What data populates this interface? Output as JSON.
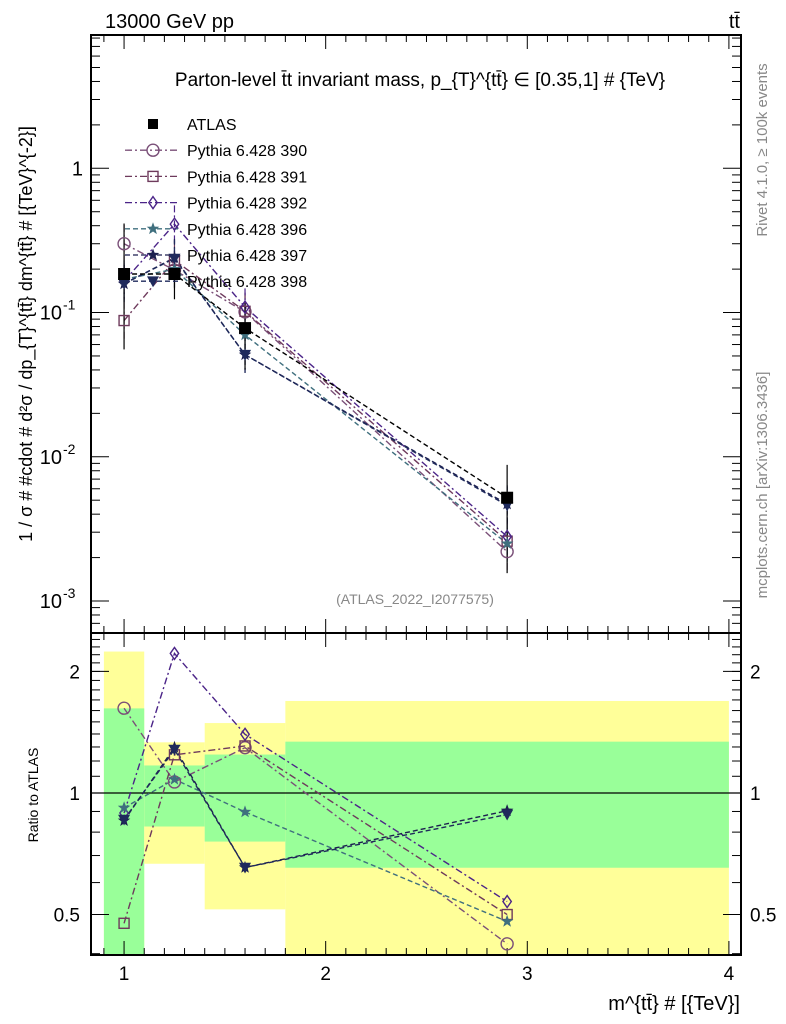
{
  "header": {
    "energy": "13000 GeV pp",
    "process": "tt̄",
    "rivet": "Rivet 4.1.0, ≥ 100k events",
    "mcplots": "mcplots.cern.ch [arXiv:1306.3436]",
    "analysis": "(ATLAS_2022_I2077575)"
  },
  "chart_data": {
    "type": "line",
    "title": "Parton-level t̄t invariant mass, p_{T}^{tt̄} ∈ [0.35,1] # {TeV}",
    "xlabel": "m^{tt̄} # [{TeV}]",
    "ylabel": "1 / σ # #cdot # d²σ / dp_{T}^{tt̄} dm^{tt̄} # [{TeV}^{-2}]",
    "ratio_ylabel": "Ratio to ATLAS",
    "xlim": [
      0.836,
      4.06
    ],
    "ylim": [
      0.0006,
      8.4
    ],
    "yscale": "log",
    "ratio_ylim": [
      0.397,
      2.49
    ],
    "x_ticks": [
      "1",
      "2",
      "3",
      "4"
    ],
    "y_ticks": [
      {
        "v": 1,
        "base": "1",
        "exp": ""
      },
      {
        "v": 0.1,
        "base": "10",
        "exp": "-1"
      },
      {
        "v": 0.01,
        "base": "10",
        "exp": "-2"
      },
      {
        "v": 0.001,
        "base": "10",
        "exp": "-3"
      }
    ],
    "ratio_ticks": [
      "0.5",
      "1",
      "2"
    ],
    "x": [
      1.0,
      1.25,
      1.6,
      2.9
    ],
    "bins": [
      [
        0.9,
        1.1
      ],
      [
        1.1,
        1.4
      ],
      [
        1.4,
        1.8
      ],
      [
        1.8,
        4.0
      ]
    ],
    "ratio_band_yellow": [
      [
        0.3,
        2.24
      ],
      [
        0.668,
        1.335
      ],
      [
        0.515,
        1.49
      ],
      [
        0.3,
        1.69
      ]
    ],
    "ratio_band_green": [
      [
        0.3,
        1.62
      ],
      [
        0.826,
        1.17
      ],
      [
        0.758,
        1.245
      ],
      [
        0.653,
        1.34
      ]
    ],
    "band_colors": {
      "yellow": "#ffff99",
      "green": "#99ff99"
    },
    "data": {
      "name": "ATLAS",
      "values": [
        0.185,
        0.185,
        0.078,
        0.0052
      ],
      "color": "#000000",
      "marker": "filled-square"
    },
    "series": [
      {
        "name": "Pythia 6.428 390",
        "values": [
          0.3,
          0.197,
          0.101,
          0.0022
        ],
        "color": "#7a4f78",
        "marker": "open-circle",
        "dash": "dashdot"
      },
      {
        "name": "Pythia 6.428 391",
        "values": [
          0.088,
          0.23,
          0.102,
          0.0026
        ],
        "color": "#6e3a5c",
        "marker": "open-square",
        "dash": "dashdot"
      },
      {
        "name": "Pythia 6.428 392",
        "values": [
          0.165,
          0.41,
          0.109,
          0.0028
        ],
        "color": "#4b2488",
        "marker": "open-diamond",
        "dash": "dashdot"
      },
      {
        "name": "Pythia 6.428 396",
        "values": [
          0.17,
          0.2,
          0.07,
          0.0025
        ],
        "color": "#3f6f7e",
        "marker": "star",
        "dash": "dashed"
      },
      {
        "name": "Pythia 6.428 397",
        "values": [
          0.158,
          0.24,
          0.051,
          0.0047
        ],
        "color": "#1c1f4f",
        "marker": "star",
        "dash": "dashed"
      },
      {
        "name": "Pythia 6.428 398",
        "values": [
          0.159,
          0.237,
          0.051,
          0.0046
        ],
        "color": "#1f2a5c",
        "marker": "triangle-down",
        "dash": "dashed"
      }
    ]
  }
}
